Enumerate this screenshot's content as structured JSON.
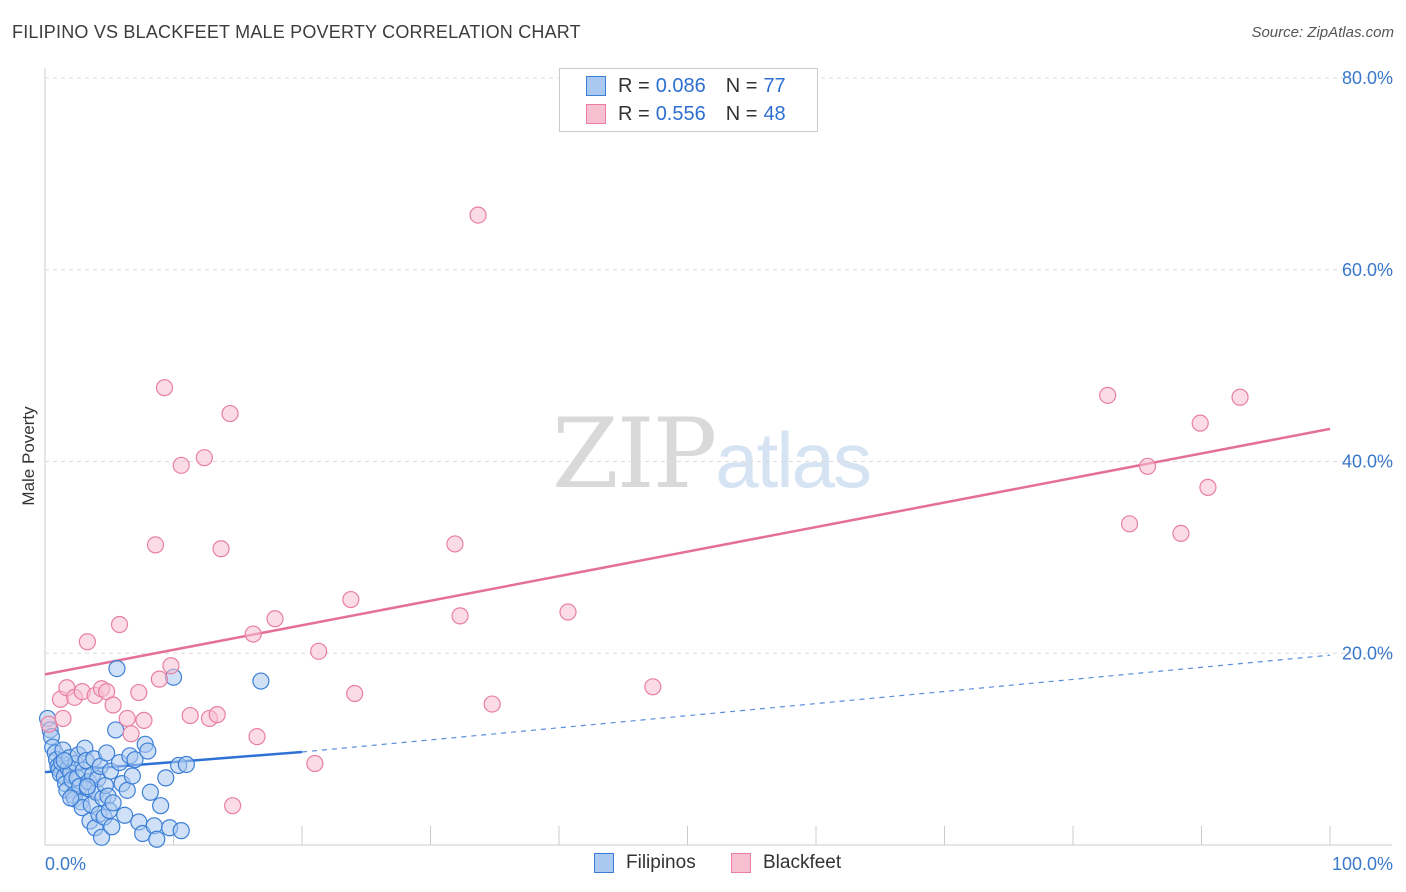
{
  "title": "FILIPINO VS BLACKFEET MALE POVERTY CORRELATION CHART",
  "source": "Source: ZipAtlas.com",
  "watermark": {
    "part1": "ZIP",
    "part2": "atlas"
  },
  "colors": {
    "filipino_fill": "#a9c9f0",
    "filipino_stroke": "#3c7fd6",
    "filipino_line": "#2f72d4",
    "blackfeet_fill": "#f7c0d1",
    "blackfeet_stroke": "#e87fa2",
    "blackfeet_line": "#e4709a",
    "tick_label": "#3a78c9"
  },
  "legend": {
    "rows": [
      {
        "r_label": "R =",
        "r_value": "0.086",
        "n_label": "N =",
        "n_value": "77"
      },
      {
        "r_label": "R =",
        "r_value": "0.556",
        "n_label": "N =",
        "n_value": "48"
      }
    ]
  },
  "bottom_legend": {
    "filipinos": "Filipinos",
    "blackfeet": "Blackfeet"
  },
  "chart_data": {
    "type": "scatter",
    "title": "FILIPINO VS BLACKFEET MALE POVERTY CORRELATION CHART",
    "xlabel": "",
    "ylabel": "Male Poverty",
    "xlim": [
      0,
      100
    ],
    "ylim": [
      0,
      80
    ],
    "x_tick_labels": [
      "0.0%",
      "100.0%"
    ],
    "y_ticks": [
      20,
      40,
      60,
      80
    ],
    "y_tick_labels": [
      "20.0%",
      "40.0%",
      "60.0%",
      "80.0%"
    ],
    "series": [
      {
        "name": "Filipinos",
        "r": 0.086,
        "n": 77,
        "trend": {
          "x0": 0,
          "y0": 7.6,
          "x1": 20,
          "y1": 9.7,
          "dashed_to_x": 100,
          "dashed_to_y": 19.8
        },
        "points": [
          [
            0.2,
            13.2
          ],
          [
            0.4,
            12.0
          ],
          [
            0.5,
            11.3
          ],
          [
            0.6,
            10.2
          ],
          [
            0.8,
            9.6
          ],
          [
            0.9,
            8.9
          ],
          [
            1.0,
            8.2
          ],
          [
            1.1,
            7.9
          ],
          [
            1.2,
            7.4
          ],
          [
            1.3,
            8.6
          ],
          [
            1.4,
            9.9
          ],
          [
            1.5,
            7.1
          ],
          [
            1.6,
            6.4
          ],
          [
            1.7,
            5.7
          ],
          [
            1.8,
            8.0
          ],
          [
            1.9,
            9.1
          ],
          [
            2.0,
            7.5
          ],
          [
            2.1,
            6.8
          ],
          [
            2.2,
            5.2
          ],
          [
            2.3,
            4.8
          ],
          [
            2.4,
            8.5
          ],
          [
            2.5,
            7.0
          ],
          [
            2.6,
            9.4
          ],
          [
            2.7,
            6.1
          ],
          [
            2.8,
            4.5
          ],
          [
            2.9,
            3.9
          ],
          [
            3.0,
            7.8
          ],
          [
            3.1,
            10.1
          ],
          [
            3.2,
            8.8
          ],
          [
            3.3,
            5.9
          ],
          [
            3.4,
            6.6
          ],
          [
            3.5,
            2.5
          ],
          [
            3.6,
            4.2
          ],
          [
            3.7,
            7.3
          ],
          [
            3.8,
            9.0
          ],
          [
            3.9,
            1.8
          ],
          [
            4.0,
            5.5
          ],
          [
            4.1,
            6.9
          ],
          [
            4.2,
            3.2
          ],
          [
            4.3,
            8.2
          ],
          [
            4.4,
            0.8
          ],
          [
            4.5,
            4.9
          ],
          [
            4.6,
            2.9
          ],
          [
            4.7,
            6.2
          ],
          [
            4.8,
            9.6
          ],
          [
            4.9,
            5.1
          ],
          [
            5.0,
            3.6
          ],
          [
            5.1,
            7.7
          ],
          [
            5.2,
            1.9
          ],
          [
            5.3,
            4.4
          ],
          [
            5.5,
            12.0
          ],
          [
            5.6,
            18.4
          ],
          [
            5.8,
            8.6
          ],
          [
            6.0,
            6.4
          ],
          [
            6.2,
            3.1
          ],
          [
            6.4,
            5.7
          ],
          [
            6.6,
            9.3
          ],
          [
            6.8,
            7.2
          ],
          [
            7.0,
            8.9
          ],
          [
            7.3,
            2.4
          ],
          [
            7.6,
            1.2
          ],
          [
            7.8,
            10.5
          ],
          [
            8.0,
            9.8
          ],
          [
            8.2,
            5.5
          ],
          [
            8.5,
            2.0
          ],
          [
            8.7,
            0.6
          ],
          [
            9.0,
            4.1
          ],
          [
            9.4,
            7.0
          ],
          [
            9.7,
            1.8
          ],
          [
            10.0,
            17.5
          ],
          [
            10.4,
            8.3
          ],
          [
            10.6,
            1.5
          ],
          [
            11.0,
            8.4
          ],
          [
            16.8,
            17.1
          ],
          [
            3.3,
            6.1
          ],
          [
            2.0,
            4.9
          ],
          [
            1.5,
            8.8
          ]
        ]
      },
      {
        "name": "Blackfeet",
        "r": 0.556,
        "n": 48,
        "trend": {
          "x0": 0,
          "y0": 17.8,
          "x1": 100,
          "y1": 43.4
        },
        "points": [
          [
            0.3,
            12.6
          ],
          [
            1.2,
            15.2
          ],
          [
            1.7,
            16.4
          ],
          [
            2.3,
            15.4
          ],
          [
            2.9,
            16.0
          ],
          [
            3.3,
            21.2
          ],
          [
            3.9,
            15.6
          ],
          [
            4.4,
            16.3
          ],
          [
            4.8,
            16.0
          ],
          [
            5.3,
            14.6
          ],
          [
            5.8,
            23.0
          ],
          [
            6.4,
            13.2
          ],
          [
            6.7,
            11.6
          ],
          [
            7.3,
            15.9
          ],
          [
            7.7,
            13.0
          ],
          [
            8.6,
            31.3
          ],
          [
            8.9,
            17.3
          ],
          [
            9.3,
            47.7
          ],
          [
            9.8,
            18.7
          ],
          [
            10.6,
            39.6
          ],
          [
            11.3,
            13.5
          ],
          [
            12.4,
            40.4
          ],
          [
            12.8,
            13.2
          ],
          [
            13.4,
            13.6
          ],
          [
            13.7,
            30.9
          ],
          [
            14.4,
            45.0
          ],
          [
            14.6,
            4.1
          ],
          [
            16.2,
            22.0
          ],
          [
            16.5,
            11.3
          ],
          [
            17.9,
            23.6
          ],
          [
            21.0,
            8.5
          ],
          [
            21.3,
            20.2
          ],
          [
            23.8,
            25.6
          ],
          [
            24.1,
            15.8
          ],
          [
            31.9,
            31.4
          ],
          [
            32.3,
            23.9
          ],
          [
            33.7,
            65.7
          ],
          [
            34.8,
            14.7
          ],
          [
            40.7,
            24.3
          ],
          [
            47.3,
            16.5
          ],
          [
            82.7,
            46.9
          ],
          [
            84.4,
            33.5
          ],
          [
            85.8,
            39.5
          ],
          [
            88.4,
            32.5
          ],
          [
            89.9,
            44.0
          ],
          [
            90.5,
            37.3
          ],
          [
            93.0,
            46.7
          ],
          [
            1.4,
            13.2
          ]
        ]
      }
    ]
  }
}
